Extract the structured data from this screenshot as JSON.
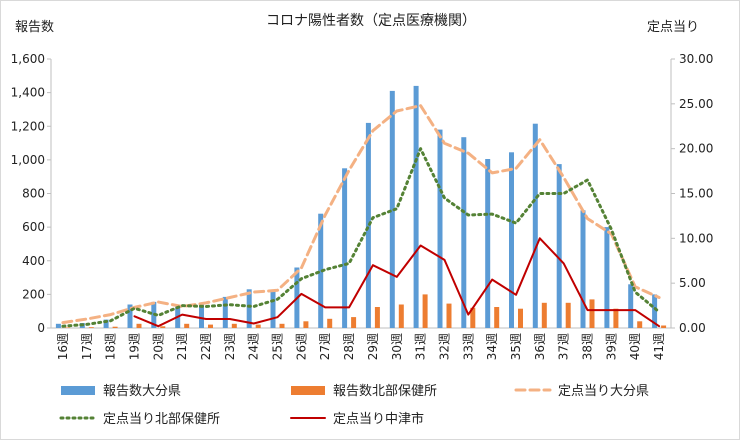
{
  "chart_data": {
    "type": "bar",
    "title": "コロナ陽性者数（定点医療機関）",
    "y_left_label": "報告数",
    "y_right_label": "定点当り",
    "y_left_lim": [
      0,
      1600
    ],
    "y_left_ticks": [
      "0",
      "200",
      "400",
      "600",
      "800",
      "1,000",
      "1,200",
      "1,400",
      "1,600"
    ],
    "y_right_lim": [
      0,
      30
    ],
    "y_right_ticks": [
      "0.00",
      "5.00",
      "10.00",
      "15.00",
      "20.00",
      "25.00",
      "30.00"
    ],
    "grid": false,
    "legend_position": "bottom",
    "categories": [
      "16週",
      "17週",
      "18週",
      "19週",
      "20週",
      "21週",
      "22週",
      "23週",
      "24週",
      "25週",
      "26週",
      "27週",
      "28週",
      "29週",
      "30週",
      "31週",
      "32週",
      "33週",
      "34週",
      "35週",
      "36週",
      "37週",
      "38週",
      "39週",
      "40週",
      "41週"
    ],
    "series": [
      {
        "name": "報告数大分県",
        "kind": "bar",
        "axis": "left",
        "color": "#5b9bd5",
        "values": [
          25,
          30,
          50,
          140,
          155,
          130,
          150,
          185,
          230,
          220,
          360,
          680,
          950,
          1220,
          1410,
          1440,
          1180,
          1135,
          1005,
          1045,
          1215,
          975,
          700,
          600,
          260,
          200
        ]
      },
      {
        "name": "報告数北部保健所",
        "kind": "bar",
        "axis": "left",
        "color": "#ed7d31",
        "values": [
          3,
          5,
          8,
          25,
          10,
          25,
          20,
          25,
          20,
          25,
          40,
          55,
          65,
          125,
          140,
          200,
          145,
          120,
          125,
          115,
          150,
          150,
          170,
          115,
          40,
          15
        ]
      },
      {
        "name": "定点当り大分県",
        "kind": "line",
        "style": "dashed",
        "axis": "right",
        "color": "#f4b183",
        "values": [
          0.6,
          1.0,
          1.5,
          2.3,
          2.9,
          2.4,
          2.8,
          3.4,
          4.0,
          4.2,
          6.7,
          12.6,
          17.6,
          22.0,
          24.2,
          24.8,
          20.6,
          19.5,
          17.3,
          17.8,
          21.0,
          16.8,
          12.2,
          10.5,
          4.6,
          3.4
        ]
      },
      {
        "name": "定点当り北部保健所",
        "kind": "line",
        "style": "dotted",
        "axis": "right",
        "color": "#548235",
        "values": [
          0.2,
          0.4,
          0.8,
          2.2,
          1.4,
          2.5,
          2.4,
          2.6,
          2.4,
          3.2,
          5.5,
          6.5,
          7.2,
          12.3,
          13.3,
          20.0,
          14.5,
          12.6,
          12.7,
          11.7,
          15.0,
          15.0,
          16.5,
          11.0,
          4.0,
          1.8
        ]
      },
      {
        "name": "定点当り中津市",
        "kind": "line",
        "style": "solid",
        "axis": "right",
        "color": "#c00000",
        "values": [
          null,
          null,
          null,
          1.3,
          0.2,
          1.5,
          1.0,
          1.0,
          0.5,
          1.2,
          3.8,
          2.3,
          2.3,
          7.0,
          5.7,
          9.2,
          7.6,
          1.5,
          5.4,
          3.7,
          10.0,
          7.2,
          2.0,
          2.0,
          2.0,
          0.2
        ]
      }
    ]
  }
}
